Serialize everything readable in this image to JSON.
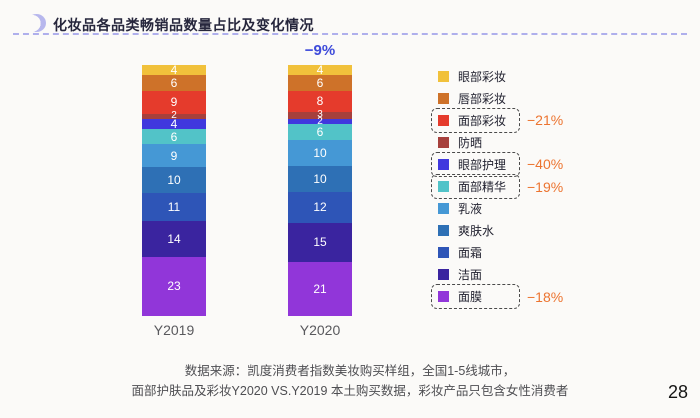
{
  "header": {
    "title": "化妆品各品类畅销品数量占比及变化情况"
  },
  "chart_data": {
    "type": "bar",
    "variant": "stacked-column",
    "stacked": true,
    "grid": false,
    "legend_position": "right",
    "categories": [
      "Y2019",
      "Y2020"
    ],
    "category_sums": [
      98,
      97
    ],
    "total_change": {
      "category": "Y2020",
      "label": "−9%"
    },
    "bar_value_label_color": "#FFFFFF",
    "series": [
      {
        "key": "eye-makeup",
        "name": "眼部彩妆",
        "color": "#F1C13B",
        "values": [
          4,
          4
        ]
      },
      {
        "key": "lip-makeup",
        "name": "唇部彩妆",
        "color": "#CE7229",
        "values": [
          6,
          6
        ]
      },
      {
        "key": "face-makeup",
        "name": "面部彩妆",
        "color": "#E53B2C",
        "values": [
          9,
          8
        ],
        "change": "−21%",
        "highlighted": true
      },
      {
        "key": "sunscreen",
        "name": "防晒",
        "color": "#A6403C",
        "values": [
          2,
          3
        ]
      },
      {
        "key": "eye-care",
        "name": "眼部护理",
        "color": "#4038DE",
        "values": [
          4,
          2
        ],
        "change": "−40%",
        "highlighted": true
      },
      {
        "key": "face-serum",
        "name": "面部精华",
        "color": "#52C3C8",
        "values": [
          6,
          6
        ],
        "change": "−19%",
        "highlighted": true
      },
      {
        "key": "lotion",
        "name": "乳液",
        "color": "#4598D5",
        "values": [
          9,
          10
        ]
      },
      {
        "key": "toner",
        "name": "爽肤水",
        "color": "#2E70B5",
        "values": [
          10,
          10
        ]
      },
      {
        "key": "face-cream",
        "name": "面霜",
        "color": "#2E55B7",
        "values": [
          11,
          12
        ]
      },
      {
        "key": "cleanser",
        "name": "洁面",
        "color": "#3A249F",
        "values": [
          14,
          15
        ]
      },
      {
        "key": "face-mask",
        "name": "面膜",
        "color": "#9136D9",
        "values": [
          23,
          21
        ],
        "change": "−18%",
        "highlighted": true
      }
    ]
  },
  "footer": {
    "source_line1": "数据来源：凯度消费者指数美妆购买样组，全国1-5线城市，",
    "source_line2": "面部护肤品及彩妆Y2020 VS.Y2019 本土购买数据，彩妆产品只包含女性消费者",
    "page_number": "28"
  },
  "theme": {
    "background": "#FBFAF8",
    "separator_dash": "#AFAFEC",
    "title_color": "#26263C",
    "total_change_color": "#3D4ADA",
    "change_label_color": "#EC7430",
    "axis_label_color": "#59595D",
    "moon_icon_color": "#B7B7ED"
  }
}
